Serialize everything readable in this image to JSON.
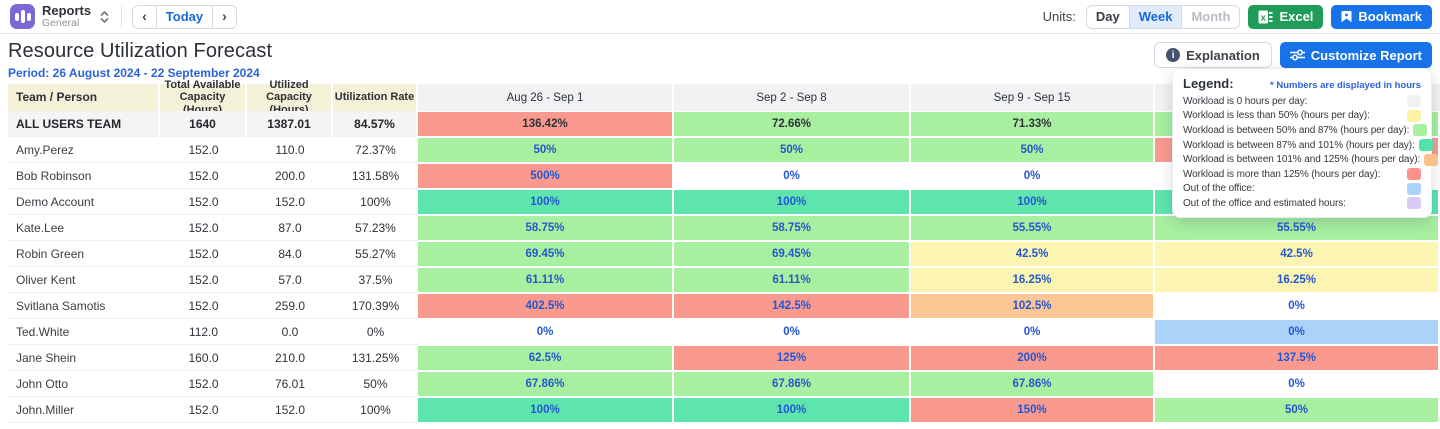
{
  "topbar": {
    "app": {
      "title": "Reports",
      "subtitle": "General"
    },
    "nav": {
      "prev": "‹",
      "today": "Today",
      "next": "›"
    },
    "units": {
      "label": "Units:",
      "options": [
        {
          "label": "Day"
        },
        {
          "label": "Week"
        },
        {
          "label": "Month"
        }
      ]
    },
    "excel_label": "Excel",
    "bookmark_label": "Bookmark"
  },
  "header": {
    "title": "Resource Utilization Forecast",
    "period": "Period: 26 August 2024 - 22 September 2024",
    "explanation_label": "Explanation",
    "customize_label": "Customize Report"
  },
  "legend": {
    "title": "Legend:",
    "note": "* Numbers are displayed in hours",
    "items": [
      {
        "label": "Workload is 0 hours per day:",
        "color": "#f1f1f1"
      },
      {
        "label": "Workload is less than 50% (hours per day):",
        "color": "#fbf2a8"
      },
      {
        "label": "Workload is between 50% and 87% (hours per day):",
        "color": "#a5ef9e"
      },
      {
        "label": "Workload is between 87% and 101% (hours per day):",
        "color": "#52e2a8"
      },
      {
        "label": "Workload is between 101% and 125% (hours per day):",
        "color": "#fbc18d"
      },
      {
        "label": "Workload is more than 125% (hours per day):",
        "color": "#fa9289"
      },
      {
        "label": "Out of the office:",
        "color": "#aed3f9"
      },
      {
        "label": "Out of the office and estimated hours:",
        "color": "#d5cbf6"
      }
    ]
  },
  "colors": {
    "red": "#fa9a8f",
    "green": "#a8f0a0",
    "teal": "#5ee5ad",
    "yellow": "#fcf5b2",
    "orange": "#fcc695",
    "blue": "#add2f9",
    "none": "transparent"
  },
  "table": {
    "columns": [
      "Team / Person",
      "Total Available Capacity (Hours)",
      "Utilized Capacity (Hours)",
      "Utilization Rate"
    ],
    "weeks": [
      "Aug 26 - Sep 1",
      "Sep 2 - Sep 8",
      "Sep 9 - Sep 15",
      ""
    ],
    "rows": [
      {
        "name": "ALL USERS TEAM",
        "total": "1640",
        "utilized": "1387.01",
        "rate": "84.57%",
        "is_team": true,
        "cells": [
          {
            "v": "136.42%",
            "c": "red"
          },
          {
            "v": "72.66%",
            "c": "green"
          },
          {
            "v": "71.33%",
            "c": "green"
          },
          {
            "v": "",
            "c": "green"
          }
        ]
      },
      {
        "name": "Amy.Perez",
        "total": "152.0",
        "utilized": "110.0",
        "rate": "72.37%",
        "cells": [
          {
            "v": "50%",
            "c": "green"
          },
          {
            "v": "50%",
            "c": "green"
          },
          {
            "v": "50%",
            "c": "green"
          },
          {
            "v": "",
            "c": "red"
          }
        ]
      },
      {
        "name": "Bob Robinson",
        "total": "152.0",
        "utilized": "200.0",
        "rate": "131.58%",
        "cells": [
          {
            "v": "500%",
            "c": "red"
          },
          {
            "v": "0%",
            "c": "none"
          },
          {
            "v": "0%",
            "c": "none"
          },
          {
            "v": "",
            "c": "none"
          }
        ]
      },
      {
        "name": "Demo Account",
        "total": "152.0",
        "utilized": "152.0",
        "rate": "100%",
        "cells": [
          {
            "v": "100%",
            "c": "teal"
          },
          {
            "v": "100%",
            "c": "teal"
          },
          {
            "v": "100%",
            "c": "teal"
          },
          {
            "v": "",
            "c": "teal"
          }
        ]
      },
      {
        "name": "Kate.Lee",
        "total": "152.0",
        "utilized": "87.0",
        "rate": "57.23%",
        "cells": [
          {
            "v": "58.75%",
            "c": "green"
          },
          {
            "v": "58.75%",
            "c": "green"
          },
          {
            "v": "55.55%",
            "c": "green"
          },
          {
            "v": "55.55%",
            "c": "green"
          }
        ]
      },
      {
        "name": "Robin Green",
        "total": "152.0",
        "utilized": "84.0",
        "rate": "55.27%",
        "cells": [
          {
            "v": "69.45%",
            "c": "green"
          },
          {
            "v": "69.45%",
            "c": "green"
          },
          {
            "v": "42.5%",
            "c": "yellow"
          },
          {
            "v": "42.5%",
            "c": "yellow"
          }
        ]
      },
      {
        "name": "Oliver Kent",
        "total": "152.0",
        "utilized": "57.0",
        "rate": "37.5%",
        "cells": [
          {
            "v": "61.11%",
            "c": "green"
          },
          {
            "v": "61.11%",
            "c": "green"
          },
          {
            "v": "16.25%",
            "c": "yellow"
          },
          {
            "v": "16.25%",
            "c": "yellow"
          }
        ]
      },
      {
        "name": "Svitlana Samotis",
        "total": "152.0",
        "utilized": "259.0",
        "rate": "170.39%",
        "cells": [
          {
            "v": "402.5%",
            "c": "red"
          },
          {
            "v": "142.5%",
            "c": "red"
          },
          {
            "v": "102.5%",
            "c": "orange"
          },
          {
            "v": "0%",
            "c": "none"
          }
        ]
      },
      {
        "name": "Ted.White",
        "total": "112.0",
        "utilized": "0.0",
        "rate": "0%",
        "cells": [
          {
            "v": "0%",
            "c": "none"
          },
          {
            "v": "0%",
            "c": "none"
          },
          {
            "v": "0%",
            "c": "none"
          },
          {
            "v": "0%",
            "c": "blue"
          }
        ]
      },
      {
        "name": "Jane Shein",
        "total": "160.0",
        "utilized": "210.0",
        "rate": "131.25%",
        "cells": [
          {
            "v": "62.5%",
            "c": "green"
          },
          {
            "v": "125%",
            "c": "red"
          },
          {
            "v": "200%",
            "c": "red"
          },
          {
            "v": "137.5%",
            "c": "red"
          }
        ]
      },
      {
        "name": "John Otto",
        "total": "152.0",
        "utilized": "76.01",
        "rate": "50%",
        "cells": [
          {
            "v": "67.86%",
            "c": "green"
          },
          {
            "v": "67.86%",
            "c": "green"
          },
          {
            "v": "67.86%",
            "c": "green"
          },
          {
            "v": "0%",
            "c": "none"
          }
        ]
      },
      {
        "name": "John.Miller",
        "total": "152.0",
        "utilized": "152.0",
        "rate": "100%",
        "cells": [
          {
            "v": "100%",
            "c": "teal"
          },
          {
            "v": "100%",
            "c": "teal"
          },
          {
            "v": "150%",
            "c": "red"
          },
          {
            "v": "50%",
            "c": "green"
          }
        ]
      }
    ]
  }
}
